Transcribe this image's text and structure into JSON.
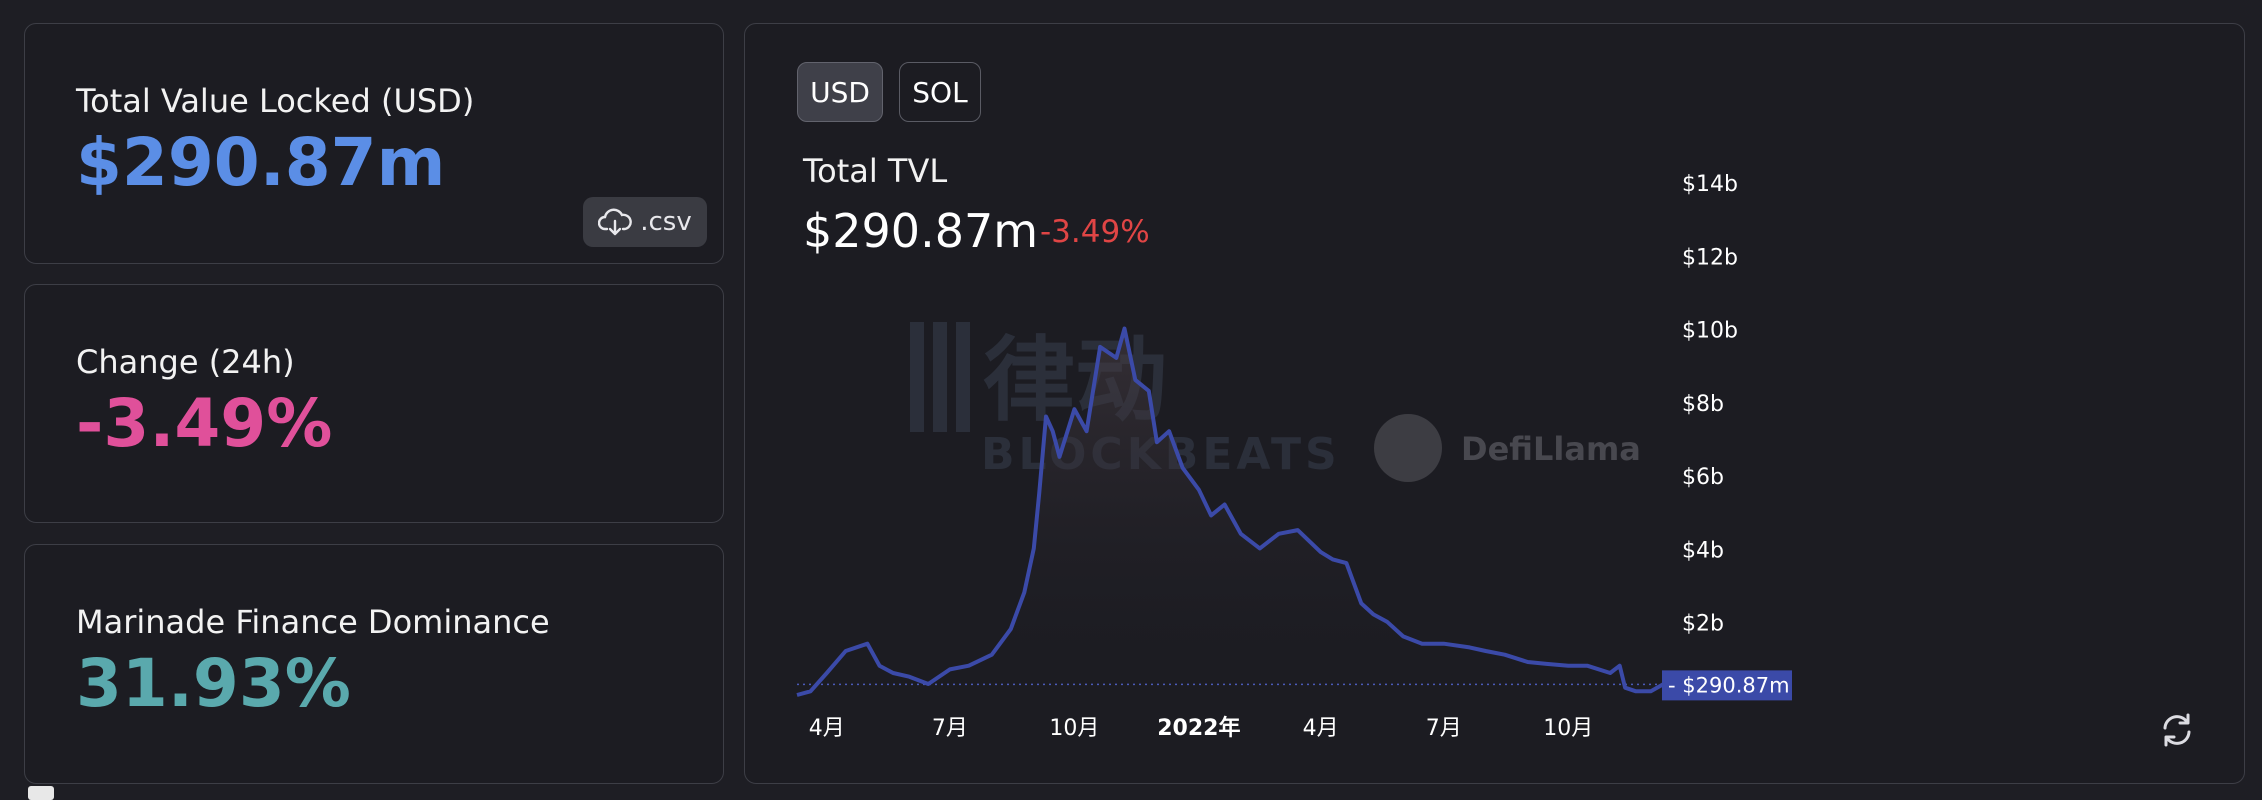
{
  "stats": [
    {
      "label": "Total Value Locked (USD)",
      "value": "$290.87m",
      "color": "#5b8ee6"
    },
    {
      "label": "Change (24h)",
      "value": "-3.49%",
      "color": "#e0509a"
    },
    {
      "label": "Marinade Finance Dominance",
      "value": "31.93%",
      "color": "#5aa9ad"
    }
  ],
  "csv_label": ".csv",
  "currency_toggle": {
    "options": [
      "USD",
      "SOL"
    ],
    "selected": "USD"
  },
  "chart_header": {
    "title": "Total TVL",
    "value": "$290.87m",
    "change": "-3.49%"
  },
  "watermarks": {
    "defillama": "DefiLlama",
    "blockbeats_cn": "律动",
    "blockbeats_en": "BLOCKBEATS"
  },
  "icons": {
    "download": "cloud-download-icon",
    "refresh": "refresh-icon"
  },
  "colors": {
    "line": "#3b4aa8",
    "current_tag_bg": "#3b4aa8",
    "change_negative": "#e04545"
  },
  "chart_data": {
    "type": "area",
    "title": "Total TVL",
    "y_unit": "USD",
    "x_ticks": [
      "4月",
      "7月",
      "10月",
      "2022年",
      "4月",
      "7月",
      "10月"
    ],
    "y_ticks": [
      "$2b",
      "$4b",
      "$6b",
      "$8b",
      "$10b",
      "$12b",
      "$14b"
    ],
    "ylim": [
      0,
      14
    ],
    "current_value_label": "$290.87m",
    "x": [
      "2021-03-10",
      "2021-03-20",
      "2021-04-01",
      "2021-04-15",
      "2021-05-01",
      "2021-05-10",
      "2021-05-20",
      "2021-06-01",
      "2021-06-15",
      "2021-07-01",
      "2021-07-15",
      "2021-08-01",
      "2021-08-15",
      "2021-08-25",
      "2021-09-01",
      "2021-09-05",
      "2021-09-10",
      "2021-09-15",
      "2021-09-20",
      "2021-10-01",
      "2021-10-10",
      "2021-10-20",
      "2021-11-01",
      "2021-11-07",
      "2021-11-15",
      "2021-11-25",
      "2021-12-01",
      "2021-12-10",
      "2021-12-20",
      "2022-01-01",
      "2022-01-10",
      "2022-01-20",
      "2022-02-01",
      "2022-02-15",
      "2022-03-01",
      "2022-03-15",
      "2022-04-01",
      "2022-04-10",
      "2022-04-20",
      "2022-05-01",
      "2022-05-10",
      "2022-05-20",
      "2022-06-01",
      "2022-06-15",
      "2022-07-01",
      "2022-07-20",
      "2022-08-01",
      "2022-08-15",
      "2022-09-01",
      "2022-09-15",
      "2022-10-01",
      "2022-10-15",
      "2022-11-01",
      "2022-11-08",
      "2022-11-12",
      "2022-11-20",
      "2022-12-01",
      "2022-12-10"
    ],
    "values": [
      0.0,
      0.1,
      0.6,
      1.2,
      1.4,
      0.8,
      0.6,
      0.5,
      0.3,
      0.7,
      0.8,
      1.1,
      1.8,
      2.8,
      4.0,
      5.5,
      7.6,
      7.2,
      6.5,
      7.8,
      7.2,
      9.5,
      9.2,
      10.0,
      8.6,
      8.3,
      6.9,
      7.2,
      6.2,
      5.6,
      4.9,
      5.2,
      4.4,
      4.0,
      4.4,
      4.5,
      3.9,
      3.7,
      3.6,
      2.5,
      2.2,
      2.0,
      1.6,
      1.4,
      1.4,
      1.3,
      1.2,
      1.1,
      0.9,
      0.85,
      0.8,
      0.8,
      0.6,
      0.8,
      0.2,
      0.1,
      0.1,
      0.29
    ]
  }
}
